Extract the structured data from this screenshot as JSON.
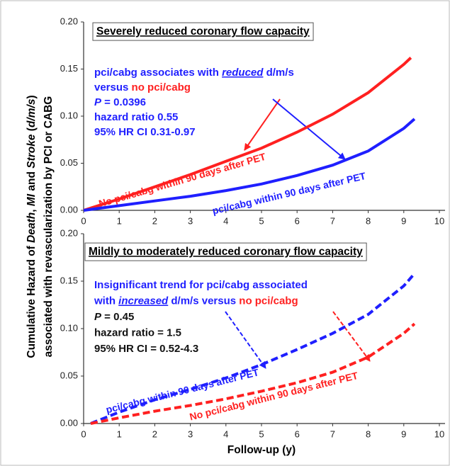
{
  "chart_data": [
    {
      "type": "line",
      "y_label": [
        [
          {
            "text": "Cumulative Hazard of "
          },
          {
            "text": "Death",
            "style": "italic"
          },
          {
            "text": ", "
          },
          {
            "text": "MI",
            "style": "italic"
          },
          {
            "text": " and "
          },
          {
            "text": "Stroke",
            "style": "italic"
          },
          {
            "text": " ("
          },
          {
            "text": "d/m/s",
            "style": "italic"
          },
          {
            "text": ")"
          }
        ],
        [
          {
            "text": "associated with revascularization by PCI or CABG"
          }
        ]
      ],
      "title": "Severely reduced coronary flow capacity",
      "annotation": [
        [
          {
            "text": "pci/cabg associates with ",
            "color": "#1f1fff"
          },
          {
            "text": "reduced",
            "color": "#1f1fff",
            "style": "italic-underline"
          },
          {
            "text": " d/m/s",
            "color": "#1f1fff"
          }
        ],
        [
          {
            "text": "versus ",
            "color": "#1f1fff"
          },
          {
            "text": "no pci/cabg",
            "color": "#ff2020"
          }
        ],
        [
          {
            "text": "P",
            "color": "#1f1fff",
            "style": "italic"
          },
          {
            "text": " = 0.0396",
            "color": "#1f1fff"
          }
        ],
        [
          {
            "text": "hazard ratio 0.55",
            "color": "#1f1fff"
          }
        ],
        [
          {
            "text": "95% HR CI 0.31-0.97",
            "color": "#1f1fff"
          }
        ]
      ],
      "series": [
        {
          "name": "No pci/cabg within 90 days after PET",
          "color": "#ff2020",
          "dash": false,
          "x": [
            0,
            1,
            2,
            3,
            4,
            5,
            6,
            7,
            8,
            9,
            9.2
          ],
          "values": [
            0,
            0.012,
            0.025,
            0.038,
            0.052,
            0.066,
            0.083,
            0.102,
            0.125,
            0.155,
            0.162
          ]
        },
        {
          "name": "pci/cabg within 90 days after PET",
          "color": "#1f1fff",
          "dash": false,
          "x": [
            0,
            1,
            2,
            3,
            4,
            5,
            6,
            7,
            8,
            9,
            9.3
          ],
          "values": [
            0,
            0.005,
            0.01,
            0.015,
            0.021,
            0.028,
            0.037,
            0.048,
            0.063,
            0.087,
            0.097
          ]
        }
      ],
      "xlim": [
        0,
        10
      ],
      "xticks": [
        0,
        1,
        2,
        3,
        4,
        5,
        6,
        7,
        8,
        9,
        10
      ],
      "ylim": [
        0,
        0.2
      ],
      "yticks": [
        {
          "value": 0,
          "label": "0.00"
        },
        {
          "value": 0.05,
          "label": "0.05"
        },
        {
          "value": 0.1,
          "label": "0.10"
        },
        {
          "value": 0.15,
          "label": "0.15"
        },
        {
          "value": 0.2,
          "label": "0.20"
        }
      ]
    },
    {
      "type": "line",
      "x_label": "Follow-up (y)",
      "title": "Mildly to moderately reduced coronary flow capacity",
      "annotation": [
        [
          {
            "text": "Insignificant trend for pci/cabg associated",
            "color": "#1f1fff"
          }
        ],
        [
          {
            "text": "with ",
            "color": "#1f1fff"
          },
          {
            "text": "increased",
            "color": "#1f1fff",
            "style": "italic-underline"
          },
          {
            "text": " d/m/s versus ",
            "color": "#1f1fff"
          },
          {
            "text": "no pci/cabg",
            "color": "#ff2020"
          }
        ],
        [
          {
            "text": "P",
            "color": "#111111",
            "style": "italic"
          },
          {
            "text": " = 0.45",
            "color": "#111111"
          }
        ],
        [
          {
            "text": "hazard ratio = 1.5",
            "color": "#111111"
          }
        ],
        [
          {
            "text": "95% HR CI = 0.52-4.3",
            "color": "#111111"
          }
        ]
      ],
      "series": [
        {
          "name": "pci/cabg within 90 days after PET",
          "color": "#1f1fff",
          "dash": true,
          "x": [
            0.2,
            1,
            2,
            3,
            4,
            5,
            6,
            7,
            8,
            9,
            9.3
          ],
          "values": [
            0,
            0.012,
            0.025,
            0.036,
            0.048,
            0.062,
            0.078,
            0.095,
            0.115,
            0.145,
            0.158
          ]
        },
        {
          "name": "No pci/cabg within 90 days after PET",
          "color": "#ff2020",
          "dash": true,
          "x": [
            0.2,
            1,
            2,
            3,
            4,
            5,
            6,
            7,
            8,
            9,
            9.3
          ],
          "values": [
            0,
            0.006,
            0.013,
            0.019,
            0.026,
            0.034,
            0.043,
            0.054,
            0.07,
            0.095,
            0.105
          ]
        }
      ],
      "xlim": [
        0,
        10
      ],
      "xticks": [
        0,
        1,
        2,
        3,
        4,
        5,
        6,
        7,
        8,
        9,
        10
      ],
      "ylim": [
        0,
        0.2
      ],
      "yticks": [
        {
          "value": 0,
          "label": "0.00"
        },
        {
          "value": 0.05,
          "label": "0.05"
        },
        {
          "value": 0.1,
          "label": "0.10"
        },
        {
          "value": 0.15,
          "label": "0.15"
        },
        {
          "value": 0.2,
          "label": "0.20"
        }
      ]
    }
  ]
}
